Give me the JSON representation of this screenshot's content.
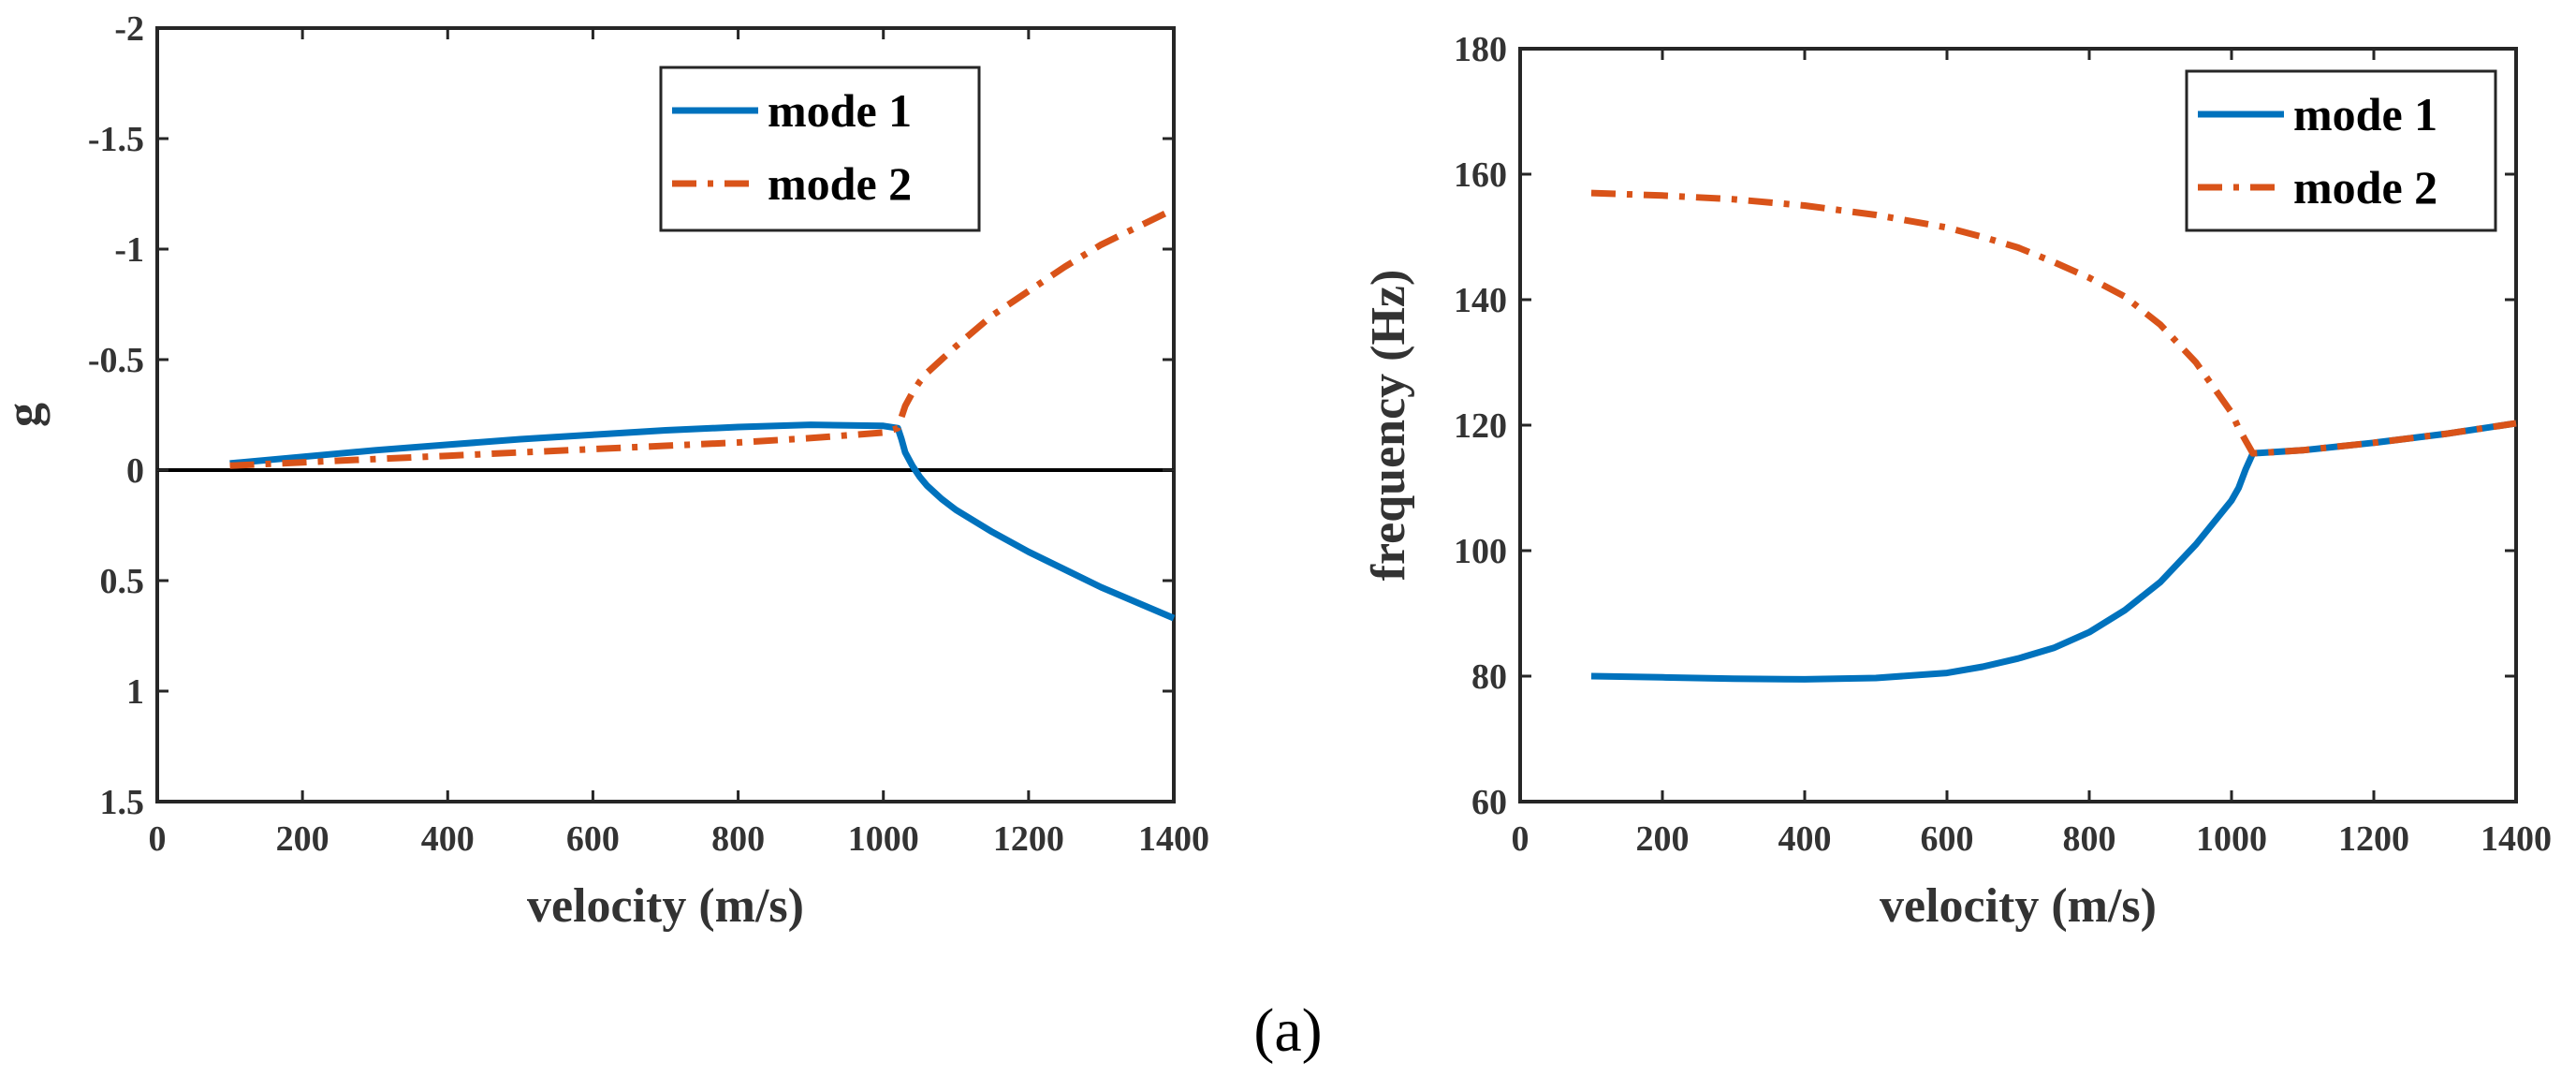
{
  "chart_data": [
    {
      "type": "line",
      "title": "",
      "xlabel": "velocity (m/s)",
      "ylabel": "g",
      "xlim": [
        0,
        1400
      ],
      "ylim": [
        -2,
        1.5
      ],
      "y_reversed": true,
      "xticks": [
        0,
        200,
        400,
        600,
        800,
        1000,
        1200,
        1400
      ],
      "xtick_labels": [
        "0",
        "200",
        "400",
        "600",
        "800",
        "1000",
        "1200",
        "1400"
      ],
      "yticks": [
        -2,
        -1.5,
        -1,
        -0.5,
        0,
        0.5,
        1,
        1.5
      ],
      "ytick_labels": [
        "-2",
        "-1.5",
        "-1",
        "-0.5",
        "0",
        "0.5",
        "1",
        "1.5"
      ],
      "reference_lines": [
        {
          "axis": "y",
          "value": 0,
          "color": "#000000"
        }
      ],
      "legend_position": "top-right",
      "series": [
        {
          "name": "mode 1",
          "style": "solid",
          "color": "#0072BD",
          "x": [
            100,
            200,
            300,
            400,
            500,
            600,
            700,
            800,
            900,
            1000,
            1020,
            1025,
            1030,
            1040,
            1050,
            1060,
            1080,
            1100,
            1150,
            1200,
            1250,
            1300,
            1350,
            1400
          ],
          "y": [
            -0.03,
            -0.06,
            -0.09,
            -0.115,
            -0.14,
            -0.16,
            -0.18,
            -0.195,
            -0.205,
            -0.2,
            -0.19,
            -0.14,
            -0.08,
            -0.02,
            0.03,
            0.07,
            0.13,
            0.18,
            0.28,
            0.37,
            0.45,
            0.53,
            0.6,
            0.67
          ]
        },
        {
          "name": "mode 2",
          "style": "dashdot",
          "color": "#D95319",
          "x": [
            100,
            200,
            300,
            400,
            500,
            600,
            700,
            800,
            900,
            1000,
            1020,
            1025,
            1030,
            1040,
            1050,
            1060,
            1080,
            1100,
            1150,
            1200,
            1250,
            1300,
            1350,
            1400
          ],
          "y": [
            -0.02,
            -0.035,
            -0.05,
            -0.065,
            -0.08,
            -0.095,
            -0.11,
            -0.125,
            -0.145,
            -0.17,
            -0.19,
            -0.24,
            -0.29,
            -0.35,
            -0.4,
            -0.44,
            -0.5,
            -0.56,
            -0.7,
            -0.81,
            -0.92,
            -1.02,
            -1.1,
            -1.18
          ]
        }
      ]
    },
    {
      "type": "line",
      "title": "",
      "xlabel": "velocity (m/s)",
      "ylabel": "frequency (Hz)",
      "xlim": [
        0,
        1400
      ],
      "ylim": [
        60,
        180
      ],
      "y_reversed": false,
      "xticks": [
        0,
        200,
        400,
        600,
        800,
        1000,
        1200,
        1400
      ],
      "xtick_labels": [
        "0",
        "200",
        "400",
        "600",
        "800",
        "1000",
        "1200",
        "1400"
      ],
      "yticks": [
        60,
        80,
        100,
        120,
        140,
        160,
        180
      ],
      "ytick_labels": [
        "60",
        "80",
        "100",
        "120",
        "140",
        "160",
        "180"
      ],
      "reference_lines": [],
      "legend_position": "top-right",
      "series": [
        {
          "name": "mode 1",
          "style": "solid",
          "color": "#0072BD",
          "x": [
            100,
            200,
            300,
            400,
            500,
            600,
            650,
            700,
            750,
            800,
            850,
            900,
            950,
            1000,
            1010,
            1020,
            1030,
            1100,
            1200,
            1300,
            1400
          ],
          "y": [
            80,
            79.8,
            79.6,
            79.5,
            79.7,
            80.5,
            81.5,
            82.8,
            84.5,
            87,
            90.5,
            95,
            101,
            108,
            110,
            113,
            115.5,
            116,
            117.2,
            118.6,
            120.3
          ]
        },
        {
          "name": "mode 2",
          "style": "dashdot",
          "color": "#D95319",
          "x": [
            100,
            200,
            300,
            400,
            500,
            600,
            650,
            700,
            750,
            800,
            850,
            900,
            950,
            1000,
            1010,
            1020,
            1030,
            1100,
            1200,
            1300,
            1400
          ],
          "y": [
            157,
            156.6,
            156,
            155,
            153.5,
            151.5,
            150,
            148.3,
            146,
            143.5,
            140.5,
            136,
            130,
            122,
            119.5,
            117.5,
            115.5,
            116,
            117.2,
            118.6,
            120.3
          ]
        }
      ]
    }
  ],
  "caption": "(a)"
}
